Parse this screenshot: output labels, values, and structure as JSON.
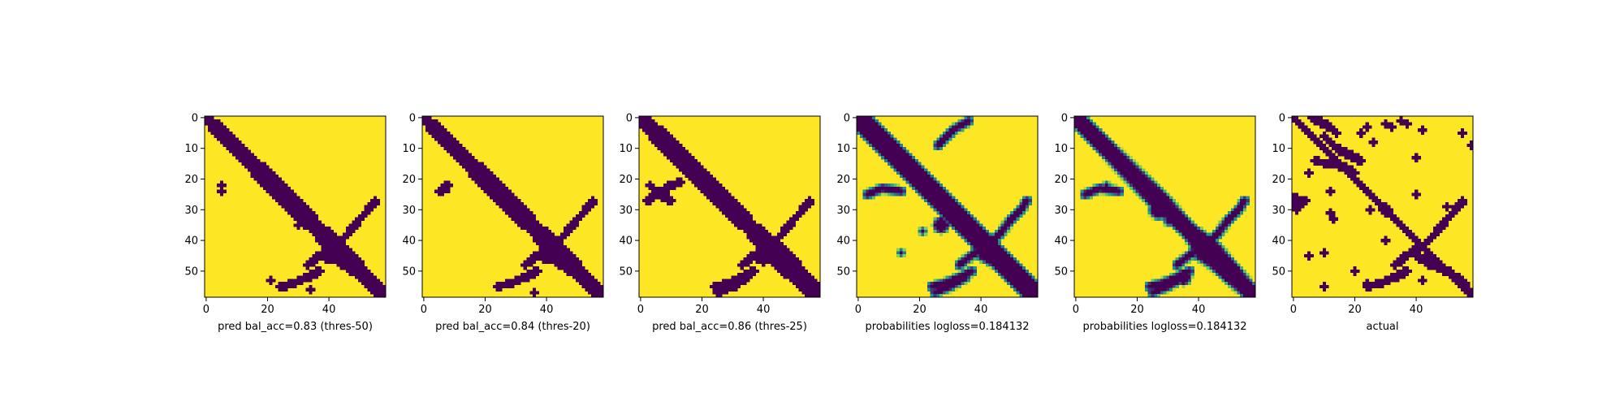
{
  "chart_data": [
    {
      "type": "heatmap",
      "subplot": "pred-thres-50",
      "xlabel": "pred bal_acc=0.83 (thres-50)",
      "value_type": "binary",
      "matrix_size": 59,
      "xlim": [
        -0.5,
        58.5
      ],
      "ylim": [
        58.5,
        -0.5
      ],
      "xticks": [
        0,
        20,
        40
      ],
      "yticks": [
        0,
        10,
        20,
        30,
        40,
        50
      ],
      "colors": {
        "low": "#440154",
        "high": "#fde725"
      },
      "dark_regions": {
        "diagonal": [
          [
            0,
            58
          ]
        ],
        "band": [
          [
            0,
            2
          ],
          [
            28,
            4
          ],
          [
            36,
            3
          ],
          [
            44,
            4
          ],
          [
            58,
            2
          ]
        ],
        "blobs": [
          [
            30,
            30,
            2
          ],
          [
            45,
            40,
            2
          ],
          [
            22,
            5,
            0.8
          ]
        ],
        "curves": [
          [
            [
              48,
              33
            ],
            [
              44,
              38
            ],
            [
              42,
              42
            ],
            [
              38,
              46
            ],
            [
              33,
              50
            ],
            [
              30,
              53
            ],
            [
              27,
              55
            ]
          ],
          [
            [
              55,
              24
            ],
            [
              54,
              28
            ],
            [
              52,
              33
            ],
            [
              50,
              37
            ]
          ],
          [
            [
              45,
              40
            ],
            [
              48,
              45
            ],
            [
              50,
              50
            ],
            [
              54,
              56
            ]
          ]
        ],
        "dots": [
          [
            24,
            5
          ],
          [
            44,
            43
          ],
          [
            55,
            26
          ],
          [
            53,
            21
          ],
          [
            56,
            34
          ],
          [
            35,
            30
          ]
        ]
      }
    },
    {
      "type": "heatmap",
      "subplot": "pred-thres-20",
      "xlabel": "pred bal_acc=0.84 (thres-20)",
      "value_type": "binary",
      "matrix_size": 59,
      "xlim": [
        -0.5,
        58.5
      ],
      "ylim": [
        58.5,
        -0.5
      ],
      "xticks": [
        0,
        20,
        40
      ],
      "yticks": [
        0,
        10,
        20,
        30,
        40,
        50
      ],
      "colors": {
        "low": "#440154",
        "high": "#fde725"
      },
      "dark_regions": {
        "diagonal": [
          [
            0,
            58
          ]
        ],
        "band": [
          [
            0,
            2
          ],
          [
            28,
            4
          ],
          [
            36,
            3
          ],
          [
            44,
            4
          ],
          [
            58,
            2
          ]
        ],
        "blobs": [
          [
            30,
            30,
            2
          ],
          [
            45,
            40,
            2
          ],
          [
            23,
            7,
            1
          ]
        ],
        "curves": [
          [
            [
              48,
              33
            ],
            [
              44,
              38
            ],
            [
              42,
              42
            ],
            [
              38,
              46
            ],
            [
              33,
              50
            ],
            [
              30,
              53
            ],
            [
              27,
              55
            ]
          ],
          [
            [
              55,
              24
            ],
            [
              54,
              28
            ],
            [
              52,
              33
            ],
            [
              50,
              37
            ]
          ],
          [
            [
              45,
              40
            ],
            [
              48,
              45
            ],
            [
              50,
              50
            ],
            [
              54,
              56
            ]
          ],
          [
            [
              24,
              5
            ],
            [
              22,
              8
            ]
          ]
        ],
        "dots": [
          [
            55,
            25
          ],
          [
            57,
            36
          ],
          [
            33,
            30
          ],
          [
            51,
            34
          ]
        ]
      }
    },
    {
      "type": "heatmap",
      "subplot": "pred-thres-25",
      "xlabel": "pred bal_acc=0.86 (thres-25)",
      "value_type": "binary",
      "matrix_size": 59,
      "xlim": [
        -0.5,
        58.5
      ],
      "ylim": [
        58.5,
        -0.5
      ],
      "xticks": [
        0,
        20,
        40
      ],
      "yticks": [
        0,
        10,
        20,
        30,
        40,
        50
      ],
      "colors": {
        "low": "#440154",
        "high": "#fde725"
      },
      "dark_regions": {
        "diagonal": [
          [
            0,
            58
          ]
        ],
        "band": [
          [
            0,
            3
          ],
          [
            28,
            4
          ],
          [
            36,
            3
          ],
          [
            44,
            5
          ],
          [
            58,
            3
          ]
        ],
        "blobs": [
          [
            30,
            30,
            2.5
          ],
          [
            45,
            40,
            2.5
          ],
          [
            55,
            55,
            3
          ]
        ],
        "curves": [
          [
            [
              27,
              2
            ],
            [
              22,
              10
            ],
            [
              21,
              13
            ]
          ],
          [
            [
              22,
              3
            ],
            [
              25,
              6
            ],
            [
              27,
              10
            ]
          ],
          [
            [
              48,
              33
            ],
            [
              44,
              38
            ],
            [
              42,
              42
            ],
            [
              38,
              46
            ],
            [
              33,
              50
            ],
            [
              30,
              53
            ],
            [
              27,
              55
            ]
          ],
          [
            [
              55,
              24
            ],
            [
              54,
              28
            ],
            [
              52,
              33
            ],
            [
              50,
              37
            ]
          ],
          [
            [
              45,
              40
            ],
            [
              48,
              45
            ],
            [
              50,
              50
            ],
            [
              54,
              56
            ]
          ],
          [
            [
              57,
              25
            ],
            [
              55,
              30
            ],
            [
              52,
              35
            ]
          ]
        ],
        "dots": []
      }
    },
    {
      "type": "heatmap",
      "subplot": "probabilities",
      "xlabel": "probabilities logloss=0.184132",
      "value_type": "continuous",
      "matrix_size": 59,
      "xlim": [
        -0.5,
        58.5
      ],
      "ylim": [
        58.5,
        -0.5
      ],
      "xticks": [
        0,
        20,
        40
      ],
      "yticks": [
        0,
        10,
        20,
        30,
        40,
        50
      ],
      "colors": {
        "low": "#440154",
        "high": "#fde725"
      },
      "dark_regions": {
        "diagonal": [
          [
            1,
            58
          ],
          [
            -1,
            58
          ],
          [
            3,
            58
          ],
          [
            -3,
            58
          ]
        ],
        "band": [
          [
            0,
            2
          ],
          [
            28,
            3
          ],
          [
            36,
            3
          ],
          [
            44,
            4
          ],
          [
            58,
            2
          ]
        ],
        "blobs": [
          [
            17,
            17,
            2
          ],
          [
            46,
            46,
            2.5
          ],
          [
            35,
            27,
            2
          ],
          [
            55,
            55,
            2
          ]
        ],
        "curves": [
          [
            [
              48,
              33
            ],
            [
              44,
              38
            ],
            [
              42,
              42
            ],
            [
              38,
              46
            ],
            [
              33,
              50
            ],
            [
              30,
              53
            ],
            [
              27,
              55
            ]
          ],
          [
            [
              55,
              24
            ],
            [
              54,
              28
            ],
            [
              52,
              33
            ],
            [
              50,
              37
            ]
          ],
          [
            [
              45,
              40
            ],
            [
              48,
              45
            ],
            [
              50,
              50
            ],
            [
              54,
              56
            ]
          ],
          [
            [
              25,
              3
            ],
            [
              23,
              8
            ],
            [
              24,
              14
            ]
          ],
          [
            [
              9,
              26
            ],
            [
              4,
              31
            ],
            [
              1,
              36
            ]
          ],
          [
            [
              57,
              25
            ],
            [
              55,
              30
            ],
            [
              52,
              35
            ]
          ]
        ],
        "dots": [
          [
            34,
            30
          ],
          [
            56,
            28
          ],
          [
            44,
            14
          ],
          [
            37,
            21
          ]
        ]
      }
    },
    {
      "type": "heatmap",
      "subplot": "probabilities-2",
      "xlabel": "probabilities logloss=0.184132",
      "value_type": "continuous",
      "matrix_size": 59,
      "xlim": [
        -0.5,
        58.5
      ],
      "ylim": [
        58.5,
        -0.5
      ],
      "xticks": [
        0,
        20,
        40
      ],
      "yticks": [
        0,
        10,
        20,
        30,
        40,
        50
      ],
      "colors": {
        "low": "#440154",
        "high": "#fde725"
      },
      "dark_regions": {
        "diagonal": [
          [
            0,
            58
          ]
        ],
        "band": [
          [
            0,
            3
          ],
          [
            28,
            4
          ],
          [
            36,
            3
          ],
          [
            44,
            5
          ],
          [
            58,
            3
          ]
        ],
        "blobs": [
          [
            30,
            27,
            2.5
          ],
          [
            45,
            43,
            2.5
          ],
          [
            52,
            35,
            2
          ]
        ],
        "curves": [
          [
            [
              48,
              33
            ],
            [
              44,
              38
            ],
            [
              42,
              42
            ],
            [
              38,
              46
            ],
            [
              33,
              50
            ],
            [
              30,
              53
            ],
            [
              27,
              55
            ]
          ],
          [
            [
              55,
              24
            ],
            [
              54,
              28
            ],
            [
              52,
              33
            ],
            [
              50,
              37
            ]
          ],
          [
            [
              45,
              40
            ],
            [
              48,
              45
            ],
            [
              50,
              50
            ],
            [
              54,
              56
            ]
          ],
          [
            [
              25,
              3
            ],
            [
              23,
              8
            ],
            [
              24,
              14
            ]
          ],
          [
            [
              57,
              25
            ],
            [
              55,
              30
            ],
            [
              52,
              35
            ]
          ]
        ],
        "dots": [
          [
            34,
            30
          ],
          [
            22,
            10
          ],
          [
            24,
            5
          ]
        ]
      }
    },
    {
      "type": "heatmap",
      "subplot": "actual",
      "xlabel": "actual",
      "value_type": "binary",
      "matrix_size": 59,
      "xlim": [
        -0.5,
        58.5
      ],
      "ylim": [
        58.5,
        -0.5
      ],
      "xticks": [
        0,
        20,
        40
      ],
      "yticks": [
        0,
        10,
        20,
        30,
        40,
        50
      ],
      "colors": {
        "low": "#440154",
        "high": "#fde725"
      },
      "dark_regions": {
        "diagonal": [
          [
            0,
            58
          ]
        ],
        "band": [
          [
            0,
            1
          ],
          [
            58,
            1
          ]
        ],
        "blobs": [
          [
            30,
            30,
            1.5
          ],
          [
            45,
            44,
            1.5
          ]
        ],
        "curves": [
          [
            [
              0,
              6
            ],
            [
              3,
              12
            ],
            [
              5,
              14
            ]
          ],
          [
            [
              6,
              10
            ],
            [
              10,
              14
            ],
            [
              12,
              18
            ],
            [
              14,
              22
            ]
          ],
          [
            [
              14,
              7
            ],
            [
              16,
              16
            ],
            [
              18,
              20
            ]
          ],
          [
            [
              48,
              33
            ],
            [
              44,
              38
            ],
            [
              42,
              42
            ],
            [
              38,
              46
            ],
            [
              33,
              50
            ],
            [
              30,
              53
            ],
            [
              27,
              55
            ]
          ],
          [
            [
              55,
              24
            ],
            [
              54,
              28
            ],
            [
              52,
              33
            ],
            [
              50,
              37
            ]
          ],
          [
            [
              45,
              40
            ],
            [
              48,
              45
            ],
            [
              50,
              50
            ],
            [
              54,
              56
            ]
          ],
          [
            [
              26,
              0
            ],
            [
              27,
              4
            ],
            [
              29,
              1
            ]
          ]
        ],
        "dots": [
          [
            5,
            22
          ],
          [
            8,
            26
          ],
          [
            18,
            5
          ],
          [
            31,
            12
          ],
          [
            33,
            13
          ],
          [
            30,
            25
          ],
          [
            55,
            10
          ],
          [
            50,
            20
          ],
          [
            53,
            42
          ],
          [
            54,
            24
          ],
          [
            56,
            57
          ],
          [
            57,
            58
          ],
          [
            5,
            55
          ],
          [
            9,
            58
          ],
          [
            13,
            40
          ],
          [
            25,
            40
          ],
          [
            24,
            12
          ],
          [
            29,
            50
          ],
          [
            45,
            5
          ],
          [
            40,
            30
          ],
          [
            2,
            30
          ],
          [
            3,
            32
          ],
          [
            29,
            0
          ],
          [
            30,
            1
          ],
          [
            1,
            35
          ],
          [
            2,
            37
          ],
          [
            44,
            10
          ],
          [
            4,
            42
          ],
          [
            3,
            24
          ]
        ]
      }
    }
  ]
}
